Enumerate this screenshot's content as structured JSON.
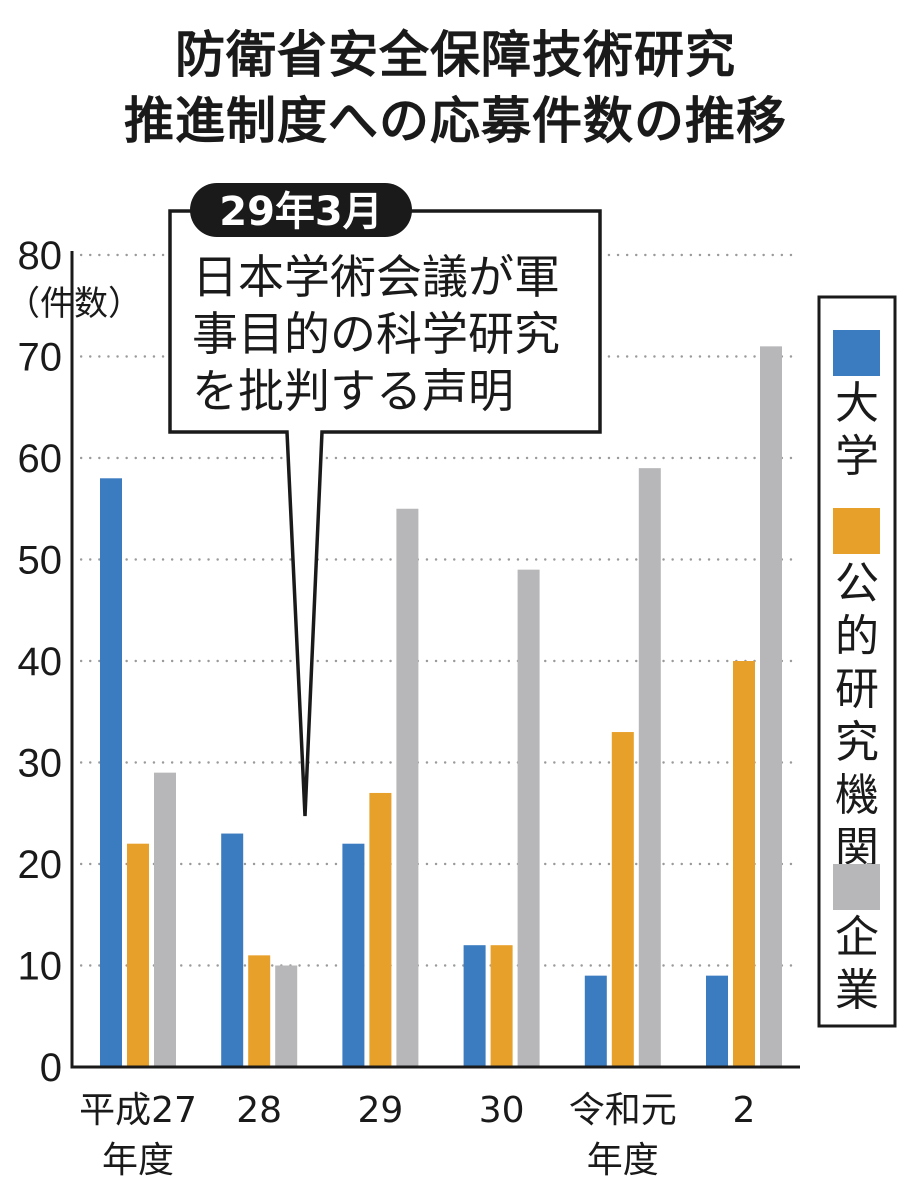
{
  "title_lines": [
    "防衛省安全保障技術研究",
    "推進制度への応募件数の推移"
  ],
  "colors": {
    "大学": "#3b7bc0",
    "公的研究機関": "#e7a02a",
    "企業": "#b7b7b9",
    "axis": "#1a1a1a",
    "grid": "#9a9a9a"
  },
  "chart_data": {
    "type": "bar",
    "title": "防衛省安全保障技術研究推進制度への応募件数の推移",
    "ylabel": "（件数）",
    "xlabel": "",
    "ylim": [
      0,
      80
    ],
    "yticks": [
      0,
      10,
      20,
      30,
      40,
      50,
      60,
      70,
      80
    ],
    "grid": true,
    "legend_position": "right",
    "categories": [
      [
        "平成27",
        "年度"
      ],
      [
        "28"
      ],
      [
        "29"
      ],
      [
        "30"
      ],
      [
        "令和元",
        "年度"
      ],
      [
        "2"
      ]
    ],
    "series": [
      {
        "name": "大学",
        "values": [
          58,
          23,
          22,
          12,
          9,
          9
        ]
      },
      {
        "name": "公的研究機関",
        "values": [
          22,
          11,
          27,
          12,
          33,
          40
        ]
      },
      {
        "name": "企業",
        "values": [
          29,
          10,
          55,
          49,
          59,
          71
        ]
      }
    ],
    "annotation": {
      "date": "29年3月",
      "text_lines": [
        "日本学術会議が軍",
        "事目的の科学研究",
        "を批判する声明"
      ]
    }
  }
}
